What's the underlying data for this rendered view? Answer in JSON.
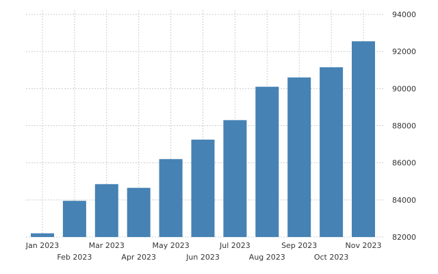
{
  "chart_data": {
    "type": "bar",
    "categories": [
      "Jan 2023",
      "Feb 2023",
      "Mar 2023",
      "Apr 2023",
      "May 2023",
      "Jun 2023",
      "Jul 2023",
      "Aug 2023",
      "Sep 2023",
      "Oct 2023",
      "Nov 2023"
    ],
    "values": [
      82200,
      83950,
      84850,
      84650,
      86200,
      87250,
      88300,
      90100,
      90600,
      91150,
      92550
    ],
    "ylim": [
      82000,
      94000
    ],
    "yticks": [
      82000,
      84000,
      86000,
      88000,
      90000,
      92000,
      94000
    ],
    "y_axis_side": "right",
    "grid": true,
    "title": "",
    "xlabel": "",
    "ylabel": "",
    "bar_color": "#4682b4"
  }
}
